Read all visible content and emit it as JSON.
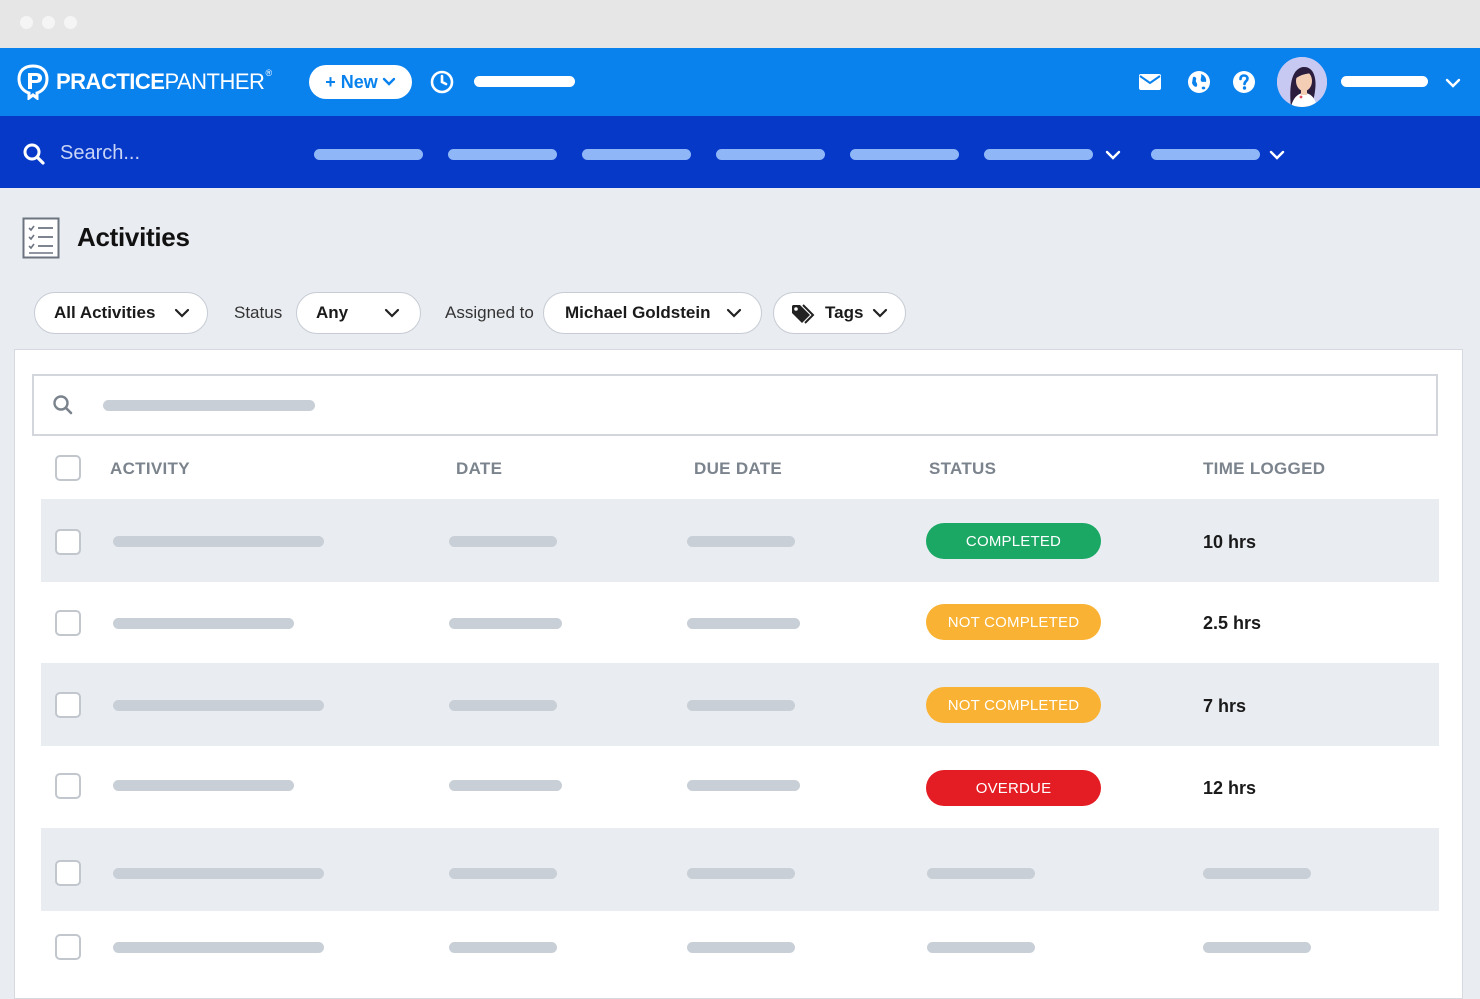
{
  "app": {
    "brand_bold": "PRACTICE",
    "brand_light": "PANTHER",
    "brand_reg": "®",
    "new_button_label": "+ New",
    "search_placeholder": "Search..."
  },
  "page": {
    "title": "Activities"
  },
  "filters": {
    "activity_type": "All Activities",
    "status_label": "Status",
    "status_value": "Any",
    "assigned_label": "Assigned to",
    "assigned_value": "Michael Goldstein",
    "tags_label": "Tags"
  },
  "table": {
    "columns": [
      "ACTIVITY",
      "DATE",
      "DUE DATE",
      "STATUS",
      "TIME LOGGED"
    ],
    "rows": [
      {
        "status": "COMPLETED",
        "status_color": "#1ba864",
        "time_logged": "10 hrs"
      },
      {
        "status": "NOT COMPLETED",
        "status_color": "#f9b233",
        "time_logged": "2.5 hrs"
      },
      {
        "status": "NOT COMPLETED",
        "status_color": "#f9b233",
        "time_logged": "7 hrs"
      },
      {
        "status": "OVERDUE",
        "status_color": "#e41c23",
        "time_logged": "12 hrs"
      }
    ]
  },
  "icons": {
    "clock": "clock-icon",
    "mail": "mail-icon",
    "globe": "globe-icon",
    "help": "help-icon",
    "search": "search-icon",
    "list": "list-icon",
    "tags": "tag-icon",
    "chevron": "chevron-down-icon"
  },
  "colors": {
    "topbar": "#0a82ee",
    "navbar": "#0639c7",
    "completed": "#1ba864",
    "not_completed": "#f9b233",
    "overdue": "#e41c23"
  }
}
